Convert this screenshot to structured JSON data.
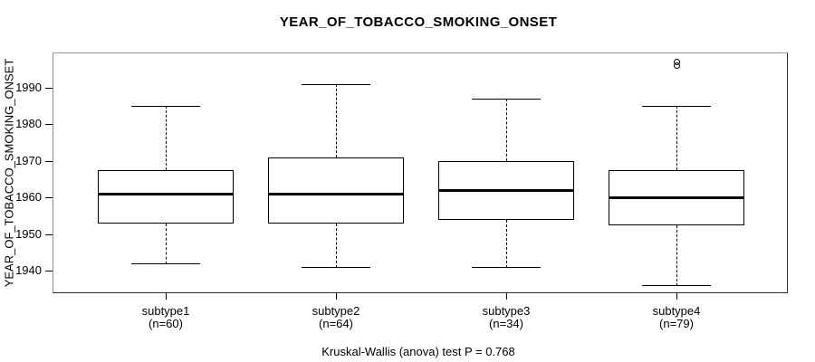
{
  "title": "YEAR_OF_TOBACCO_SMOKING_ONSET",
  "footer": "Kruskal-Wallis (anova) test P = 0.768",
  "chart_data": {
    "type": "boxplot",
    "title": "YEAR_OF_TOBACCO_SMOKING_ONSET",
    "xlabel": "",
    "ylabel": "YEAR_OF_TOBACCO_SMOKING_ONSET",
    "ylim": [
      1933.9,
      1999.6
    ],
    "y_ticks": [
      1940,
      1950,
      1960,
      1970,
      1980,
      1990
    ],
    "grid": false,
    "legend": false,
    "categories": [
      "subtype1",
      "subtype2",
      "subtype3",
      "subtype4"
    ],
    "category_sublabels": [
      "(n=60)",
      "(n=64)",
      "(n=34)",
      "(n=79)"
    ],
    "sample_sizes": [
      60,
      64,
      34,
      79
    ],
    "series": [
      {
        "name": "subtype1",
        "n": 60,
        "whisker_low": 1942,
        "q1": 1953,
        "median": 1961,
        "q3": 1967.5,
        "whisker_high": 1985,
        "outliers": []
      },
      {
        "name": "subtype2",
        "n": 64,
        "whisker_low": 1941,
        "q1": 1953,
        "median": 1961,
        "q3": 1971,
        "whisker_high": 1991,
        "outliers": []
      },
      {
        "name": "subtype3",
        "n": 34,
        "whisker_low": 1941,
        "q1": 1954,
        "median": 1962,
        "q3": 1970,
        "whisker_high": 1987,
        "outliers": []
      },
      {
        "name": "subtype4",
        "n": 79,
        "whisker_low": 1936,
        "q1": 1952.5,
        "median": 1960,
        "q3": 1967.5,
        "whisker_high": 1985,
        "outliers": [
          1996,
          1997
        ]
      }
    ],
    "annotation": "Kruskal-Wallis (anova) test P = 0.768",
    "colors": {
      "line": "#000000",
      "box_fill": "#ffffff",
      "background": "#ffffff",
      "frame": "#555555"
    }
  }
}
